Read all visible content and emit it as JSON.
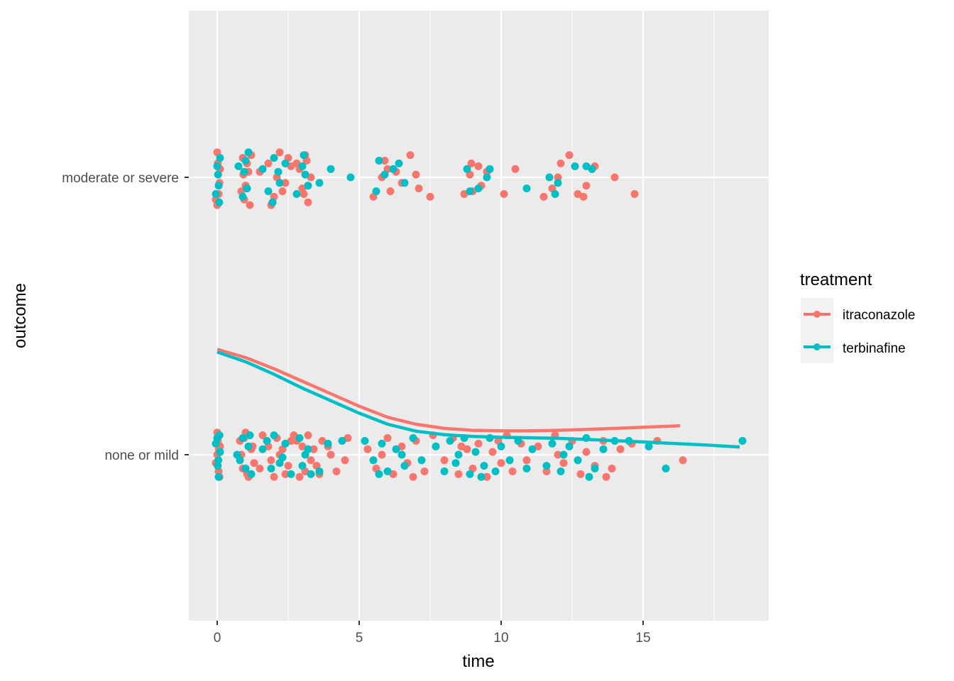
{
  "chart_data": {
    "type": "scatter",
    "xlabel": "time",
    "ylabel": "outcome",
    "xlim": [
      -0.95,
      19.45
    ],
    "x_ticks": [
      "0",
      "5",
      "10",
      "15"
    ],
    "y_categories": [
      "moderate or severe",
      "none or mild"
    ],
    "grid": true,
    "legend": {
      "title": "treatment",
      "position": "right"
    },
    "colors": {
      "itraconazole": "#F8766D",
      "terbinafine": "#00BFC4",
      "panel": "#EBEBEB",
      "grid": "#FFFFFF"
    },
    "series": [
      {
        "name": "itraconazole",
        "color": "#F8766D",
        "points_moderate_or_severe": [
          [
            0.0,
            0.09
          ],
          [
            0.05,
            -0.06
          ],
          [
            0.1,
            0.03
          ],
          [
            -0.05,
            -0.08
          ],
          [
            0.02,
            0.05
          ],
          [
            0.08,
            -0.02
          ],
          [
            0.0,
            -0.1
          ],
          [
            0.9,
            0.07
          ],
          [
            1.0,
            -0.03
          ],
          [
            1.1,
            0.02
          ],
          [
            0.95,
            -0.08
          ],
          [
            1.2,
            0.08
          ],
          [
            0.85,
            -0.05
          ],
          [
            1.05,
            0.05
          ],
          [
            1.15,
            -0.1
          ],
          [
            0.92,
            0.01
          ],
          [
            1.5,
            0.02
          ],
          [
            1.8,
            0.05
          ],
          [
            2.0,
            -0.07
          ],
          [
            2.2,
            0.09
          ],
          [
            2.4,
            -0.02
          ],
          [
            2.6,
            0.04
          ],
          [
            1.9,
            -0.1
          ],
          [
            2.1,
            0.0
          ],
          [
            2.3,
            -0.05
          ],
          [
            2.5,
            0.07
          ],
          [
            2.8,
            0.05
          ],
          [
            3.0,
            -0.04
          ],
          [
            3.1,
            0.08
          ],
          [
            3.2,
            -0.09
          ],
          [
            3.3,
            0.0
          ],
          [
            2.9,
            0.03
          ],
          [
            3.05,
            -0.06
          ],
          [
            3.15,
            0.06
          ],
          [
            5.9,
            0.06
          ],
          [
            6.1,
            -0.05
          ],
          [
            6.3,
            0.02
          ],
          [
            5.5,
            -0.07
          ],
          [
            6.0,
            0.03
          ],
          [
            6.8,
            0.08
          ],
          [
            7.1,
            -0.04
          ],
          [
            7.5,
            -0.07
          ],
          [
            6.5,
            -0.02
          ],
          [
            5.8,
            0.0
          ],
          [
            7.0,
            0.01
          ],
          [
            8.9,
            0.01
          ],
          [
            9.2,
            0.04
          ],
          [
            8.7,
            -0.06
          ],
          [
            9.0,
            -0.05
          ],
          [
            9.5,
            0.02
          ],
          [
            10.1,
            -0.06
          ],
          [
            10.5,
            0.03
          ],
          [
            9.3,
            -0.03
          ],
          [
            8.95,
            0.05
          ],
          [
            11.5,
            -0.07
          ],
          [
            12.0,
            0.0
          ],
          [
            12.4,
            0.08
          ],
          [
            12.7,
            -0.06
          ],
          [
            12.9,
            -0.07
          ],
          [
            13.3,
            0.04
          ],
          [
            14.0,
            0.0
          ],
          [
            14.7,
            -0.06
          ],
          [
            11.8,
            -0.04
          ],
          [
            12.1,
            0.05
          ],
          [
            13.0,
            -0.03
          ]
        ],
        "points_none_or_mild": [
          [
            0.0,
            0.08
          ],
          [
            0.05,
            -0.06
          ],
          [
            0.1,
            0.03
          ],
          [
            -0.05,
            -0.03
          ],
          [
            0.02,
            0.05
          ],
          [
            0.08,
            -0.08
          ],
          [
            0.0,
            0.0
          ],
          [
            0.06,
            0.02
          ],
          [
            0.8,
            0.05
          ],
          [
            0.9,
            -0.05
          ],
          [
            1.0,
            0.08
          ],
          [
            1.1,
            -0.08
          ],
          [
            1.2,
            0.02
          ],
          [
            1.3,
            -0.03
          ],
          [
            0.85,
            0.0
          ],
          [
            0.95,
            0.06
          ],
          [
            1.05,
            -0.07
          ],
          [
            1.25,
            0.03
          ],
          [
            1.5,
            -0.05
          ],
          [
            1.6,
            0.07
          ],
          [
            1.8,
            0.03
          ],
          [
            2.0,
            -0.08
          ],
          [
            2.1,
            0.06
          ],
          [
            2.3,
            0.02
          ],
          [
            2.5,
            -0.04
          ],
          [
            2.7,
            0.07
          ],
          [
            1.9,
            -0.02
          ],
          [
            2.2,
            0.0
          ],
          [
            2.4,
            -0.07
          ],
          [
            2.6,
            0.05
          ],
          [
            2.8,
            0.05
          ],
          [
            2.9,
            -0.08
          ],
          [
            3.0,
            0.03
          ],
          [
            3.1,
            -0.06
          ],
          [
            3.2,
            0.07
          ],
          [
            3.4,
            0.02
          ],
          [
            3.5,
            -0.04
          ],
          [
            3.7,
            0.05
          ],
          [
            3.3,
            -0.02
          ],
          [
            3.6,
            -0.07
          ],
          [
            3.9,
            0.03
          ],
          [
            4.2,
            -0.06
          ],
          [
            4.5,
            -0.02
          ],
          [
            4.6,
            0.06
          ],
          [
            4.0,
            0.0
          ],
          [
            5.3,
            0.02
          ],
          [
            5.6,
            -0.05
          ],
          [
            6.0,
            0.06
          ],
          [
            6.2,
            -0.07
          ],
          [
            6.5,
            0.03
          ],
          [
            6.7,
            -0.03
          ],
          [
            7.0,
            0.05
          ],
          [
            7.3,
            -0.06
          ],
          [
            7.6,
            0.07
          ],
          [
            5.8,
            0.0
          ],
          [
            6.9,
            -0.08
          ],
          [
            8.0,
            -0.02
          ],
          [
            8.3,
            0.06
          ],
          [
            8.5,
            -0.07
          ],
          [
            8.8,
            0.02
          ],
          [
            9.0,
            -0.05
          ],
          [
            9.2,
            0.04
          ],
          [
            9.5,
            -0.08
          ],
          [
            9.7,
            0.01
          ],
          [
            10.0,
            -0.03
          ],
          [
            10.2,
            0.07
          ],
          [
            10.4,
            -0.06
          ],
          [
            10.7,
            0.04
          ],
          [
            10.9,
            -0.02
          ],
          [
            8.6,
            0.03
          ],
          [
            9.9,
            0.05
          ],
          [
            11.3,
            0.03
          ],
          [
            11.6,
            -0.06
          ],
          [
            11.9,
            0.07
          ],
          [
            12.2,
            -0.03
          ],
          [
            12.5,
            0.05
          ],
          [
            12.8,
            -0.07
          ],
          [
            13.0,
            0.01
          ],
          [
            13.3,
            -0.04
          ],
          [
            13.6,
            0.05
          ],
          [
            13.9,
            -0.05
          ],
          [
            14.2,
            0.02
          ],
          [
            14.6,
            0.04
          ],
          [
            15.5,
            0.05
          ],
          [
            16.4,
            -0.02
          ],
          [
            12.0,
            0.0
          ],
          [
            13.7,
            -0.08
          ]
        ],
        "smooth_curve": [
          [
            0.0,
            0.38
          ],
          [
            1.0,
            0.35
          ],
          [
            2.0,
            0.31
          ],
          [
            3.0,
            0.265
          ],
          [
            4.0,
            0.22
          ],
          [
            5.0,
            0.175
          ],
          [
            6.0,
            0.135
          ],
          [
            7.0,
            0.11
          ],
          [
            8.0,
            0.095
          ],
          [
            9.0,
            0.088
          ],
          [
            10.0,
            0.086
          ],
          [
            11.0,
            0.086
          ],
          [
            12.0,
            0.088
          ],
          [
            13.0,
            0.091
          ],
          [
            14.0,
            0.095
          ],
          [
            15.0,
            0.099
          ],
          [
            16.3,
            0.104
          ]
        ]
      },
      {
        "name": "terbinafine",
        "color": "#00BFC4",
        "points_moderate_or_severe": [
          [
            0.0,
            0.04
          ],
          [
            0.05,
            -0.03
          ],
          [
            0.1,
            0.07
          ],
          [
            -0.05,
            -0.06
          ],
          [
            0.03,
            0.01
          ],
          [
            0.07,
            -0.09
          ],
          [
            0.75,
            0.04
          ],
          [
            0.95,
            0.02
          ],
          [
            1.05,
            -0.04
          ],
          [
            1.1,
            0.09
          ],
          [
            0.9,
            -0.07
          ],
          [
            1.0,
            0.06
          ],
          [
            1.6,
            0.03
          ],
          [
            1.8,
            -0.05
          ],
          [
            2.0,
            0.07
          ],
          [
            2.2,
            -0.02
          ],
          [
            2.4,
            0.05
          ],
          [
            1.95,
            -0.09
          ],
          [
            2.15,
            0.02
          ],
          [
            2.8,
            -0.06
          ],
          [
            3.0,
            0.04
          ],
          [
            3.1,
            0.01
          ],
          [
            3.2,
            -0.03
          ],
          [
            3.6,
            -0.02
          ],
          [
            4.0,
            0.03
          ],
          [
            4.7,
            0.0
          ],
          [
            3.05,
            0.08
          ],
          [
            5.6,
            -0.05
          ],
          [
            5.9,
            0.01
          ],
          [
            6.2,
            0.03
          ],
          [
            6.4,
            0.05
          ],
          [
            6.6,
            -0.02
          ],
          [
            5.7,
            0.06
          ],
          [
            8.8,
            0.03
          ],
          [
            9.2,
            -0.04
          ],
          [
            9.5,
            0.0
          ],
          [
            9.6,
            0.03
          ],
          [
            8.9,
            -0.05
          ],
          [
            10.9,
            -0.04
          ],
          [
            11.7,
            0.0
          ],
          [
            12.0,
            -0.02
          ],
          [
            12.6,
            0.04
          ],
          [
            13.0,
            0.04
          ],
          [
            13.2,
            0.03
          ],
          [
            11.9,
            -0.06
          ]
        ],
        "points_none_or_mild": [
          [
            0.0,
            0.06
          ],
          [
            0.05,
            -0.08
          ],
          [
            0.1,
            0.01
          ],
          [
            -0.05,
            0.04
          ],
          [
            0.02,
            -0.04
          ],
          [
            0.08,
            0.07
          ],
          [
            0.04,
            -0.02
          ],
          [
            0.7,
            0.0
          ],
          [
            0.9,
            0.06
          ],
          [
            1.0,
            -0.05
          ],
          [
            1.1,
            0.03
          ],
          [
            1.2,
            -0.07
          ],
          [
            0.8,
            -0.02
          ],
          [
            1.15,
            0.07
          ],
          [
            1.6,
            0.02
          ],
          [
            1.9,
            -0.05
          ],
          [
            2.0,
            0.07
          ],
          [
            2.2,
            -0.03
          ],
          [
            2.4,
            0.04
          ],
          [
            2.6,
            -0.07
          ],
          [
            1.75,
            0.05
          ],
          [
            2.3,
            -0.01
          ],
          [
            2.9,
            0.06
          ],
          [
            3.0,
            -0.04
          ],
          [
            3.2,
            0.02
          ],
          [
            3.3,
            -0.07
          ],
          [
            3.6,
            -0.06
          ],
          [
            3.9,
            0.04
          ],
          [
            4.4,
            0.05
          ],
          [
            3.1,
            0.0
          ],
          [
            5.2,
            0.05
          ],
          [
            5.5,
            -0.02
          ],
          [
            5.8,
            0.04
          ],
          [
            6.0,
            -0.06
          ],
          [
            6.3,
            0.02
          ],
          [
            6.6,
            -0.04
          ],
          [
            6.9,
            0.06
          ],
          [
            7.2,
            -0.02
          ],
          [
            5.7,
            -0.07
          ],
          [
            6.5,
            0.0
          ],
          [
            7.7,
            0.03
          ],
          [
            8.0,
            -0.06
          ],
          [
            8.2,
            0.05
          ],
          [
            8.4,
            -0.03
          ],
          [
            8.7,
            0.06
          ],
          [
            8.9,
            -0.07
          ],
          [
            9.1,
            0.01
          ],
          [
            9.4,
            -0.04
          ],
          [
            9.6,
            0.06
          ],
          [
            9.8,
            -0.06
          ],
          [
            10.0,
            0.03
          ],
          [
            10.3,
            -0.02
          ],
          [
            10.6,
            0.05
          ],
          [
            10.9,
            -0.05
          ],
          [
            11.1,
            0.02
          ],
          [
            8.5,
            0.0
          ],
          [
            9.3,
            -0.08
          ],
          [
            11.6,
            -0.04
          ],
          [
            11.8,
            0.04
          ],
          [
            12.1,
            -0.06
          ],
          [
            12.4,
            0.03
          ],
          [
            12.7,
            -0.02
          ],
          [
            13.0,
            0.06
          ],
          [
            13.3,
            -0.05
          ],
          [
            13.6,
            0.02
          ],
          [
            14.0,
            0.05
          ],
          [
            14.5,
            0.05
          ],
          [
            15.2,
            0.03
          ],
          [
            15.8,
            -0.05
          ],
          [
            18.5,
            0.05
          ],
          [
            12.2,
            0.0
          ],
          [
            13.1,
            -0.08
          ]
        ],
        "smooth_curve": [
          [
            0.0,
            0.37
          ],
          [
            1.0,
            0.335
          ],
          [
            2.0,
            0.29
          ],
          [
            3.0,
            0.24
          ],
          [
            4.0,
            0.195
          ],
          [
            5.0,
            0.15
          ],
          [
            6.0,
            0.11
          ],
          [
            7.0,
            0.085
          ],
          [
            8.0,
            0.072
          ],
          [
            9.0,
            0.066
          ],
          [
            10.0,
            0.063
          ],
          [
            11.0,
            0.061
          ],
          [
            12.0,
            0.059
          ],
          [
            13.0,
            0.055
          ],
          [
            14.0,
            0.051
          ],
          [
            15.0,
            0.046
          ],
          [
            16.0,
            0.041
          ],
          [
            17.0,
            0.036
          ],
          [
            18.4,
            0.028
          ]
        ]
      }
    ]
  }
}
